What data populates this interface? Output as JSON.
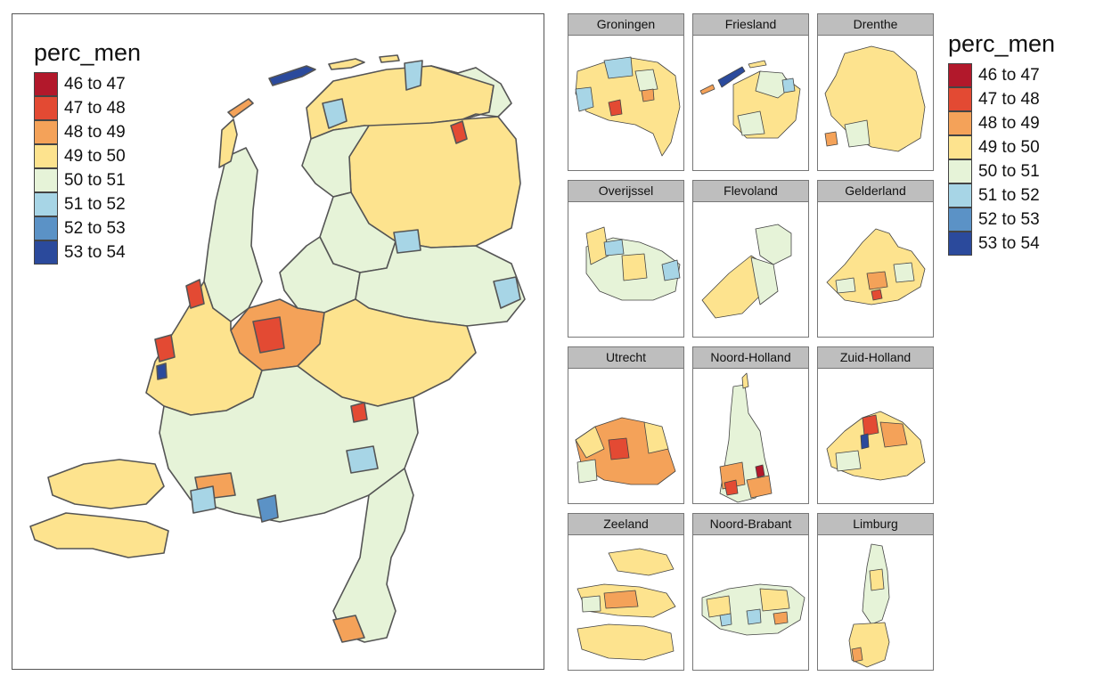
{
  "main_map": {
    "legend": {
      "title": "perc_men",
      "entries": [
        {
          "label": "46 to 47",
          "color": "#b2182b"
        },
        {
          "label": "47 to 48",
          "color": "#e34a33"
        },
        {
          "label": "48 to 49",
          "color": "#f4a259"
        },
        {
          "label": "49 to 50",
          "color": "#fde38e"
        },
        {
          "label": "50 to 51",
          "color": "#e6f3d8"
        },
        {
          "label": "51 to 52",
          "color": "#a7d5e6"
        },
        {
          "label": "52 to 53",
          "color": "#5b92c6"
        },
        {
          "label": "53 to 54",
          "color": "#2b4a9c"
        }
      ]
    }
  },
  "panels": [
    {
      "name": "Groningen"
    },
    {
      "name": "Friesland"
    },
    {
      "name": "Drenthe"
    },
    {
      "name": "Overijssel"
    },
    {
      "name": "Flevoland"
    },
    {
      "name": "Gelderland"
    },
    {
      "name": "Utrecht"
    },
    {
      "name": "Noord-Holland"
    },
    {
      "name": "Zuid-Holland"
    },
    {
      "name": "Zeeland"
    },
    {
      "name": "Noord-Brabant"
    },
    {
      "name": "Limburg"
    }
  ],
  "side_legend": {
    "title": "perc_men",
    "entries": [
      {
        "label": "46 to 47",
        "color": "#b2182b"
      },
      {
        "label": "47 to 48",
        "color": "#e34a33"
      },
      {
        "label": "48 to 49",
        "color": "#f4a259"
      },
      {
        "label": "49 to 50",
        "color": "#fde38e"
      },
      {
        "label": "50 to 51",
        "color": "#e6f3d8"
      },
      {
        "label": "51 to 52",
        "color": "#a7d5e6"
      },
      {
        "label": "52 to 53",
        "color": "#5b92c6"
      },
      {
        "label": "53 to 54",
        "color": "#2b4a9c"
      }
    ]
  }
}
